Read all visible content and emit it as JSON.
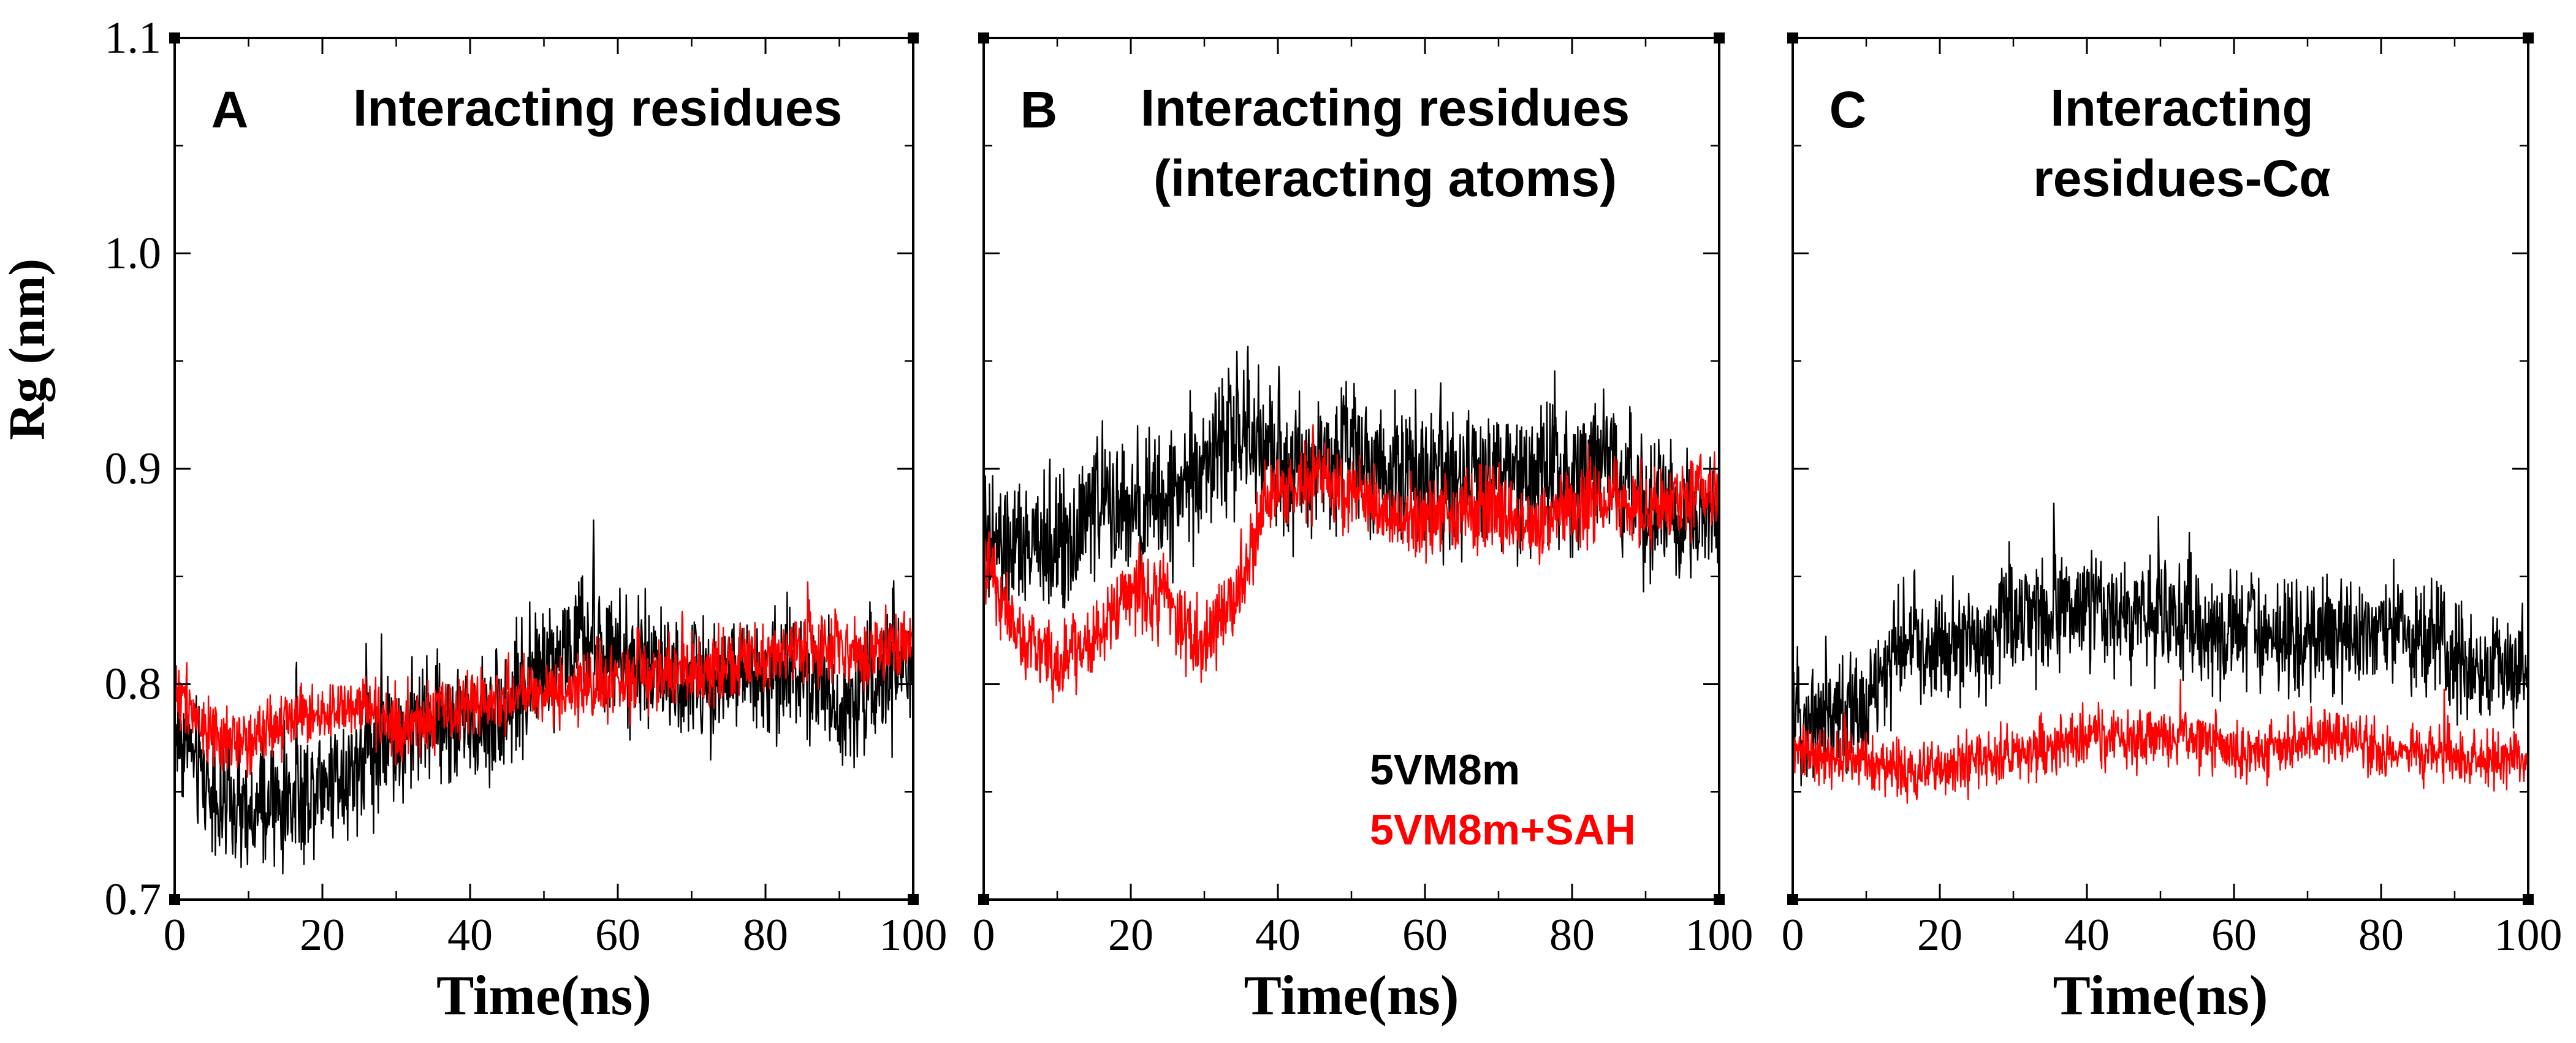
{
  "figure": {
    "ylabel": "Rg (nm)",
    "ylim": [
      0.7,
      1.1
    ],
    "yticks": [
      0.7,
      0.8,
      0.9,
      1.0,
      1.1
    ],
    "ytick_labels": [
      "0.7",
      "0.8",
      "0.9",
      "1.0",
      "1.1"
    ],
    "colors": {
      "series_1": "#000000",
      "series_2": "#ff0000",
      "axes": "#000000",
      "background": "#ffffff"
    }
  },
  "legend": {
    "entries": [
      {
        "label": "5VM8m",
        "color": "#000000"
      },
      {
        "label": "5VM8m+SAH",
        "color": "#ff0000"
      }
    ]
  },
  "chart_data": [
    {
      "type": "line",
      "panel": "A",
      "title": "Interacting residues",
      "title_lines": [
        "Interacting residues"
      ],
      "xlabel": "Time(ns)",
      "ylabel": "Rg (nm)",
      "xlim": [
        0,
        100
      ],
      "ylim": [
        0.7,
        1.1
      ],
      "xticks": [
        0,
        20,
        40,
        60,
        80,
        100
      ],
      "xtick_labels": [
        "0",
        "20",
        "40",
        "60",
        "80",
        "100"
      ],
      "x": [
        0,
        5,
        10,
        15,
        20,
        25,
        30,
        35,
        40,
        45,
        50,
        55,
        60,
        65,
        70,
        75,
        80,
        85,
        90,
        95,
        100
      ],
      "series": [
        {
          "name": "5VM8m",
          "color": "#000000",
          "noise": 0.022,
          "values": [
            0.78,
            0.75,
            0.735,
            0.745,
            0.755,
            0.765,
            0.775,
            0.785,
            0.78,
            0.79,
            0.81,
            0.82,
            0.81,
            0.805,
            0.8,
            0.805,
            0.8,
            0.81,
            0.79,
            0.8,
            0.81
          ]
        },
        {
          "name": "5VM8m+SAH",
          "color": "#ff0000",
          "noise": 0.012,
          "values": [
            0.8,
            0.775,
            0.775,
            0.785,
            0.785,
            0.79,
            0.78,
            0.785,
            0.79,
            0.795,
            0.795,
            0.8,
            0.8,
            0.805,
            0.805,
            0.81,
            0.81,
            0.815,
            0.815,
            0.815,
            0.82
          ]
        }
      ]
    },
    {
      "type": "line",
      "panel": "B",
      "title": "Interacting residues (interacting atoms)",
      "title_lines": [
        "Interacting residues",
        "(interacting atoms)"
      ],
      "xlabel": "Time(ns)",
      "ylabel": "Rg (nm)",
      "xlim": [
        0,
        100
      ],
      "ylim": [
        0.7,
        1.1
      ],
      "xticks": [
        0,
        20,
        40,
        60,
        80,
        100
      ],
      "xtick_labels": [
        "0",
        "20",
        "40",
        "60",
        "80",
        "100"
      ],
      "x": [
        0,
        5,
        10,
        15,
        20,
        25,
        30,
        35,
        40,
        45,
        50,
        55,
        60,
        65,
        70,
        75,
        80,
        85,
        90,
        95,
        100
      ],
      "series": [
        {
          "name": "5VM8m",
          "color": "#000000",
          "noise": 0.025,
          "values": [
            0.865,
            0.86,
            0.865,
            0.885,
            0.88,
            0.885,
            0.905,
            0.915,
            0.905,
            0.9,
            0.915,
            0.9,
            0.9,
            0.895,
            0.9,
            0.895,
            0.9,
            0.9,
            0.88,
            0.875,
            0.88
          ]
        },
        {
          "name": "5VM8m+SAH",
          "color": "#ff0000",
          "noise": 0.014,
          "values": [
            0.86,
            0.82,
            0.81,
            0.82,
            0.845,
            0.84,
            0.815,
            0.85,
            0.89,
            0.895,
            0.89,
            0.88,
            0.875,
            0.88,
            0.88,
            0.875,
            0.88,
            0.885,
            0.88,
            0.885,
            0.89
          ]
        }
      ]
    },
    {
      "type": "line",
      "panel": "C",
      "title": "Interacting residues-Cα",
      "title_lines": [
        "Interacting",
        "residues-Cα"
      ],
      "xlabel": "Time(ns)",
      "ylabel": "Rg (nm)",
      "xlim": [
        0,
        100
      ],
      "ylim": [
        0.7,
        1.1
      ],
      "xticks": [
        0,
        20,
        40,
        60,
        80,
        100
      ],
      "xtick_labels": [
        "0",
        "20",
        "40",
        "60",
        "80",
        "100"
      ],
      "x": [
        0,
        5,
        10,
        15,
        20,
        25,
        30,
        35,
        40,
        45,
        50,
        55,
        60,
        65,
        70,
        75,
        80,
        85,
        90,
        95,
        100
      ],
      "series": [
        {
          "name": "5VM8m",
          "color": "#000000",
          "noise": 0.02,
          "values": [
            0.785,
            0.785,
            0.79,
            0.82,
            0.815,
            0.82,
            0.83,
            0.835,
            0.835,
            0.83,
            0.835,
            0.825,
            0.825,
            0.82,
            0.82,
            0.825,
            0.825,
            0.82,
            0.815,
            0.805,
            0.805
          ]
        },
        {
          "name": "5VM8m+SAH",
          "color": "#ff0000",
          "noise": 0.01,
          "values": [
            0.77,
            0.765,
            0.765,
            0.76,
            0.76,
            0.765,
            0.765,
            0.77,
            0.775,
            0.775,
            0.775,
            0.775,
            0.77,
            0.77,
            0.775,
            0.775,
            0.77,
            0.77,
            0.765,
            0.765,
            0.765
          ]
        }
      ]
    }
  ]
}
